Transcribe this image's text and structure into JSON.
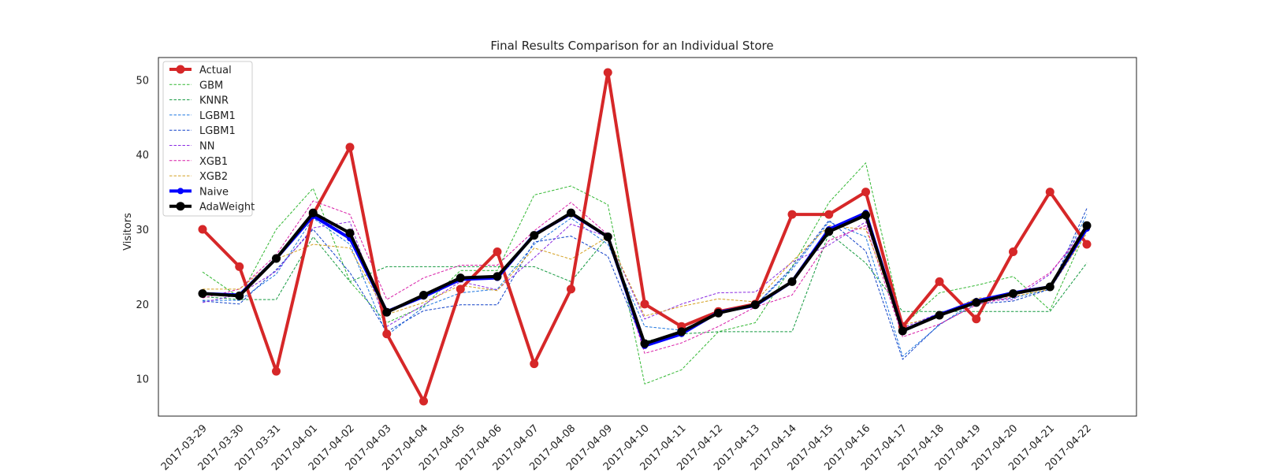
{
  "chart_data": {
    "type": "line",
    "title": "Final Results Comparison for an Individual Store",
    "xlabel": "",
    "ylabel": "Visitors",
    "ylim": [
      5,
      53
    ],
    "yticks": [
      10,
      20,
      30,
      40,
      50
    ],
    "grid": false,
    "legend_position": "top-left",
    "categories": [
      "2017-03-29",
      "2017-03-30",
      "2017-03-31",
      "2017-04-01",
      "2017-04-02",
      "2017-04-03",
      "2017-04-04",
      "2017-04-05",
      "2017-04-06",
      "2017-04-07",
      "2017-04-08",
      "2017-04-09",
      "2017-04-10",
      "2017-04-11",
      "2017-04-12",
      "2017-04-13",
      "2017-04-14",
      "2017-04-15",
      "2017-04-16",
      "2017-04-17",
      "2017-04-18",
      "2017-04-19",
      "2017-04-20",
      "2017-04-21",
      "2017-04-22"
    ],
    "series": [
      {
        "name": "GBM",
        "color": "#33b833",
        "style": "dashed",
        "values": [
          24.3,
          20.9,
          30.0,
          35.5,
          23.0,
          17.5,
          19.7,
          24.5,
          24.5,
          34.6,
          35.8,
          33.3,
          9.3,
          11.2,
          16.3,
          17.5,
          25.0,
          33.6,
          38.9,
          17.1,
          21.5,
          22.5,
          23.7,
          19.2,
          30.0
        ]
      },
      {
        "name": "KNNR",
        "color": "#159a40",
        "style": "dashed",
        "values": [
          21.0,
          20.6,
          20.6,
          29.0,
          23.0,
          25.0,
          25.0,
          25.0,
          25.0,
          25.0,
          23.0,
          29.0,
          15.0,
          16.0,
          16.3,
          16.3,
          16.3,
          29.5,
          25.5,
          19.0,
          19.0,
          19.0,
          19.0,
          19.0,
          25.5
        ]
      },
      {
        "name": "LGBM1",
        "color": "#1f77e0",
        "style": "dashed",
        "values": [
          20.5,
          20.5,
          24.0,
          31.5,
          28.0,
          15.8,
          19.6,
          21.5,
          22.0,
          28.0,
          31.5,
          28.0,
          17.0,
          16.5,
          18.8,
          19.8,
          24.6,
          31.0,
          29.0,
          13.0,
          17.2,
          20.5,
          20.8,
          22.0,
          32.0
        ]
      },
      {
        "name": "LGBM1",
        "color": "#1040c8",
        "style": "dashed",
        "values": [
          20.4,
          20.0,
          24.6,
          30.0,
          24.2,
          16.3,
          19.1,
          19.9,
          19.9,
          28.3,
          29.1,
          26.4,
          14.3,
          16.5,
          18.8,
          19.8,
          24.9,
          31.2,
          27.1,
          12.6,
          17.3,
          20.0,
          20.4,
          22.0,
          32.8
        ]
      },
      {
        "name": "NN",
        "color": "#8a2be2",
        "style": "dashed",
        "values": [
          20.2,
          21.3,
          24.4,
          30.2,
          31.0,
          17.0,
          19.9,
          23.0,
          21.9,
          26.2,
          30.7,
          29.0,
          18.0,
          20.0,
          21.5,
          21.6,
          25.6,
          27.9,
          31.0,
          16.8,
          18.8,
          20.4,
          20.6,
          24.0,
          30.6
        ]
      },
      {
        "name": "XGB1",
        "color": "#d91ea8",
        "style": "dashed",
        "values": [
          20.8,
          22.0,
          26.6,
          33.8,
          32.0,
          20.6,
          23.5,
          25.2,
          25.2,
          29.8,
          33.6,
          29.3,
          13.4,
          14.8,
          17.0,
          19.6,
          21.2,
          28.5,
          30.5,
          15.6,
          17.3,
          19.9,
          21.0,
          24.2,
          30.0
        ]
      },
      {
        "name": "XGB2",
        "color": "#d4a020",
        "style": "dashed",
        "values": [
          22.0,
          22.0,
          26.0,
          28.0,
          27.5,
          18.6,
          20.2,
          22.5,
          21.8,
          27.5,
          26.0,
          29.0,
          18.4,
          19.7,
          20.7,
          20.3,
          25.7,
          30.5,
          30.0,
          17.2,
          18.4,
          20.8,
          21.0,
          22.0,
          29.5
        ]
      },
      {
        "name": "Actual",
        "color": "#d62728",
        "style": "solid-thick-marker",
        "values": [
          30,
          25,
          11,
          32,
          41,
          16,
          7,
          22,
          27,
          12,
          22,
          51,
          20,
          17,
          19,
          20,
          32,
          32,
          35,
          17,
          23,
          18,
          27,
          35,
          28
        ]
      },
      {
        "name": "Naive",
        "color": "#0000ff",
        "style": "solid-medium-marker",
        "values": [
          21.4,
          21.2,
          26.1,
          31.8,
          28.8,
          19.0,
          21.0,
          23.3,
          23.5,
          29.3,
          32.1,
          29.0,
          14.4,
          16.0,
          18.9,
          19.8,
          23.0,
          30.0,
          32.2,
          16.4,
          18.6,
          20.4,
          21.5,
          22.3,
          30.1
        ]
      },
      {
        "name": "AdaWeight",
        "color": "#000000",
        "style": "solid-thick-marker",
        "values": [
          21.4,
          21.1,
          26.1,
          32.2,
          29.5,
          18.9,
          21.2,
          23.5,
          23.7,
          29.2,
          32.2,
          29.0,
          14.7,
          16.3,
          18.8,
          19.9,
          23.0,
          29.7,
          31.9,
          16.4,
          18.5,
          20.2,
          21.4,
          22.3,
          30.5
        ]
      }
    ],
    "legend_order": [
      "Actual",
      "GBM",
      "KNNR",
      "LGBM1",
      "LGBM1",
      "NN",
      "XGB1",
      "XGB2",
      "Naive",
      "AdaWeight"
    ]
  }
}
